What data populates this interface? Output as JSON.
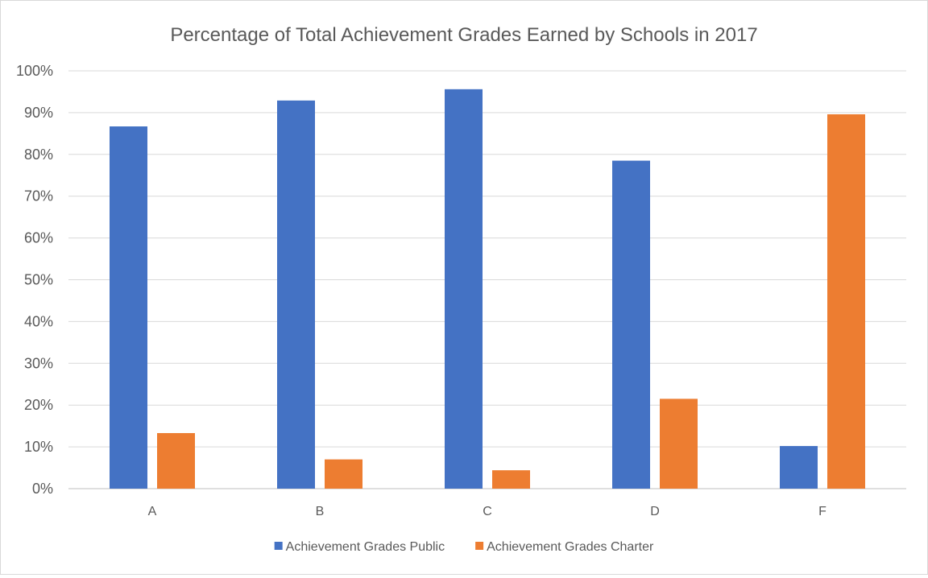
{
  "chart_data": {
    "type": "bar",
    "title": "Percentage of Total Achievement Grades Earned by Schools in 2017",
    "xlabel": "",
    "ylabel": "",
    "categories": [
      "A",
      "B",
      "C",
      "D",
      "F"
    ],
    "series": [
      {
        "name": "Achievement Grades Public",
        "color": "#4472C4",
        "values": [
          86.7,
          92.9,
          95.6,
          78.5,
          10.2
        ]
      },
      {
        "name": "Achievement Grades Charter",
        "color": "#ED7D31",
        "values": [
          13.3,
          7.0,
          4.4,
          21.5,
          89.6
        ]
      }
    ],
    "ylim": [
      0,
      100
    ],
    "yticks": [
      0,
      10,
      20,
      30,
      40,
      50,
      60,
      70,
      80,
      90,
      100
    ],
    "ytick_labels": [
      "0%",
      "10%",
      "20%",
      "30%",
      "40%",
      "50%",
      "60%",
      "70%",
      "80%",
      "90%",
      "100%"
    ],
    "grid": true,
    "legend_position": "bottom"
  }
}
